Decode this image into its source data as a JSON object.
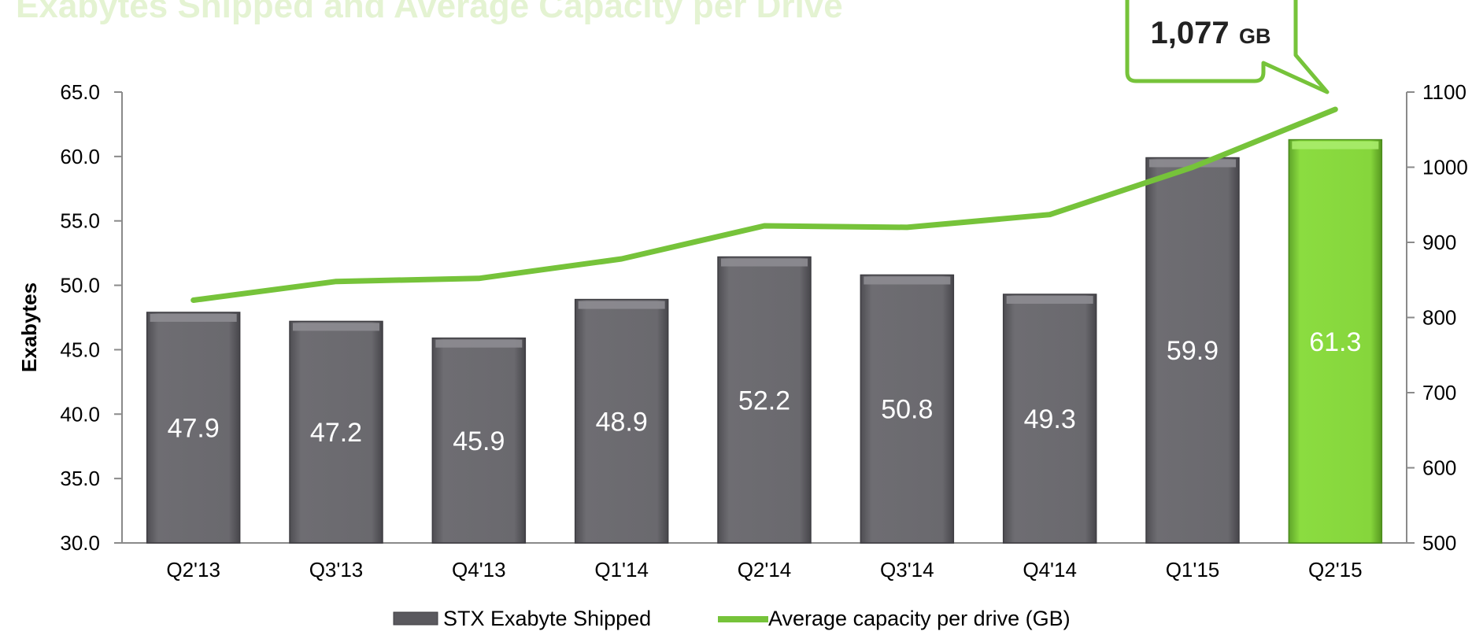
{
  "header": {
    "title_partial": "Exabytes Shipped and Average Capacity per Drive"
  },
  "callout": {
    "value": "1,077",
    "unit": "GB"
  },
  "chart_data": {
    "type": "bar",
    "categories": [
      "Q2'13",
      "Q3'13",
      "Q4'13",
      "Q1'14",
      "Q2'14",
      "Q3'14",
      "Q4'14",
      "Q1'15",
      "Q2'15"
    ],
    "series": [
      {
        "name": "STX Exabyte Shipped",
        "type": "bar",
        "axis": "left",
        "values": [
          47.9,
          47.2,
          45.9,
          48.9,
          52.2,
          50.8,
          49.3,
          59.9,
          61.3
        ],
        "value_labels": [
          "47.9",
          "47.2",
          "45.9",
          "48.9",
          "52.2",
          "50.8",
          "49.3",
          "59.9",
          "61.3"
        ]
      },
      {
        "name": "Average capacity per drive (GB)",
        "type": "line",
        "axis": "right",
        "values": [
          823,
          848,
          852,
          878,
          922,
          920,
          937,
          1000,
          1077
        ]
      }
    ],
    "ylabel": "Exabytes",
    "ylim": [
      30.0,
      65.0
    ],
    "yticks": [
      "30.0",
      "35.0",
      "40.0",
      "45.0",
      "50.0",
      "55.0",
      "60.0",
      "65.0"
    ],
    "y2lim": [
      500,
      1100
    ],
    "y2ticks": [
      "500",
      "600",
      "700",
      "800",
      "900",
      "1000",
      "1100"
    ],
    "legend_placement": "bottom-center",
    "colors": {
      "bar": "#67666b",
      "bar_highlight": "#86d63c",
      "line": "#76c33a",
      "axis": "#8a8a8a"
    }
  }
}
